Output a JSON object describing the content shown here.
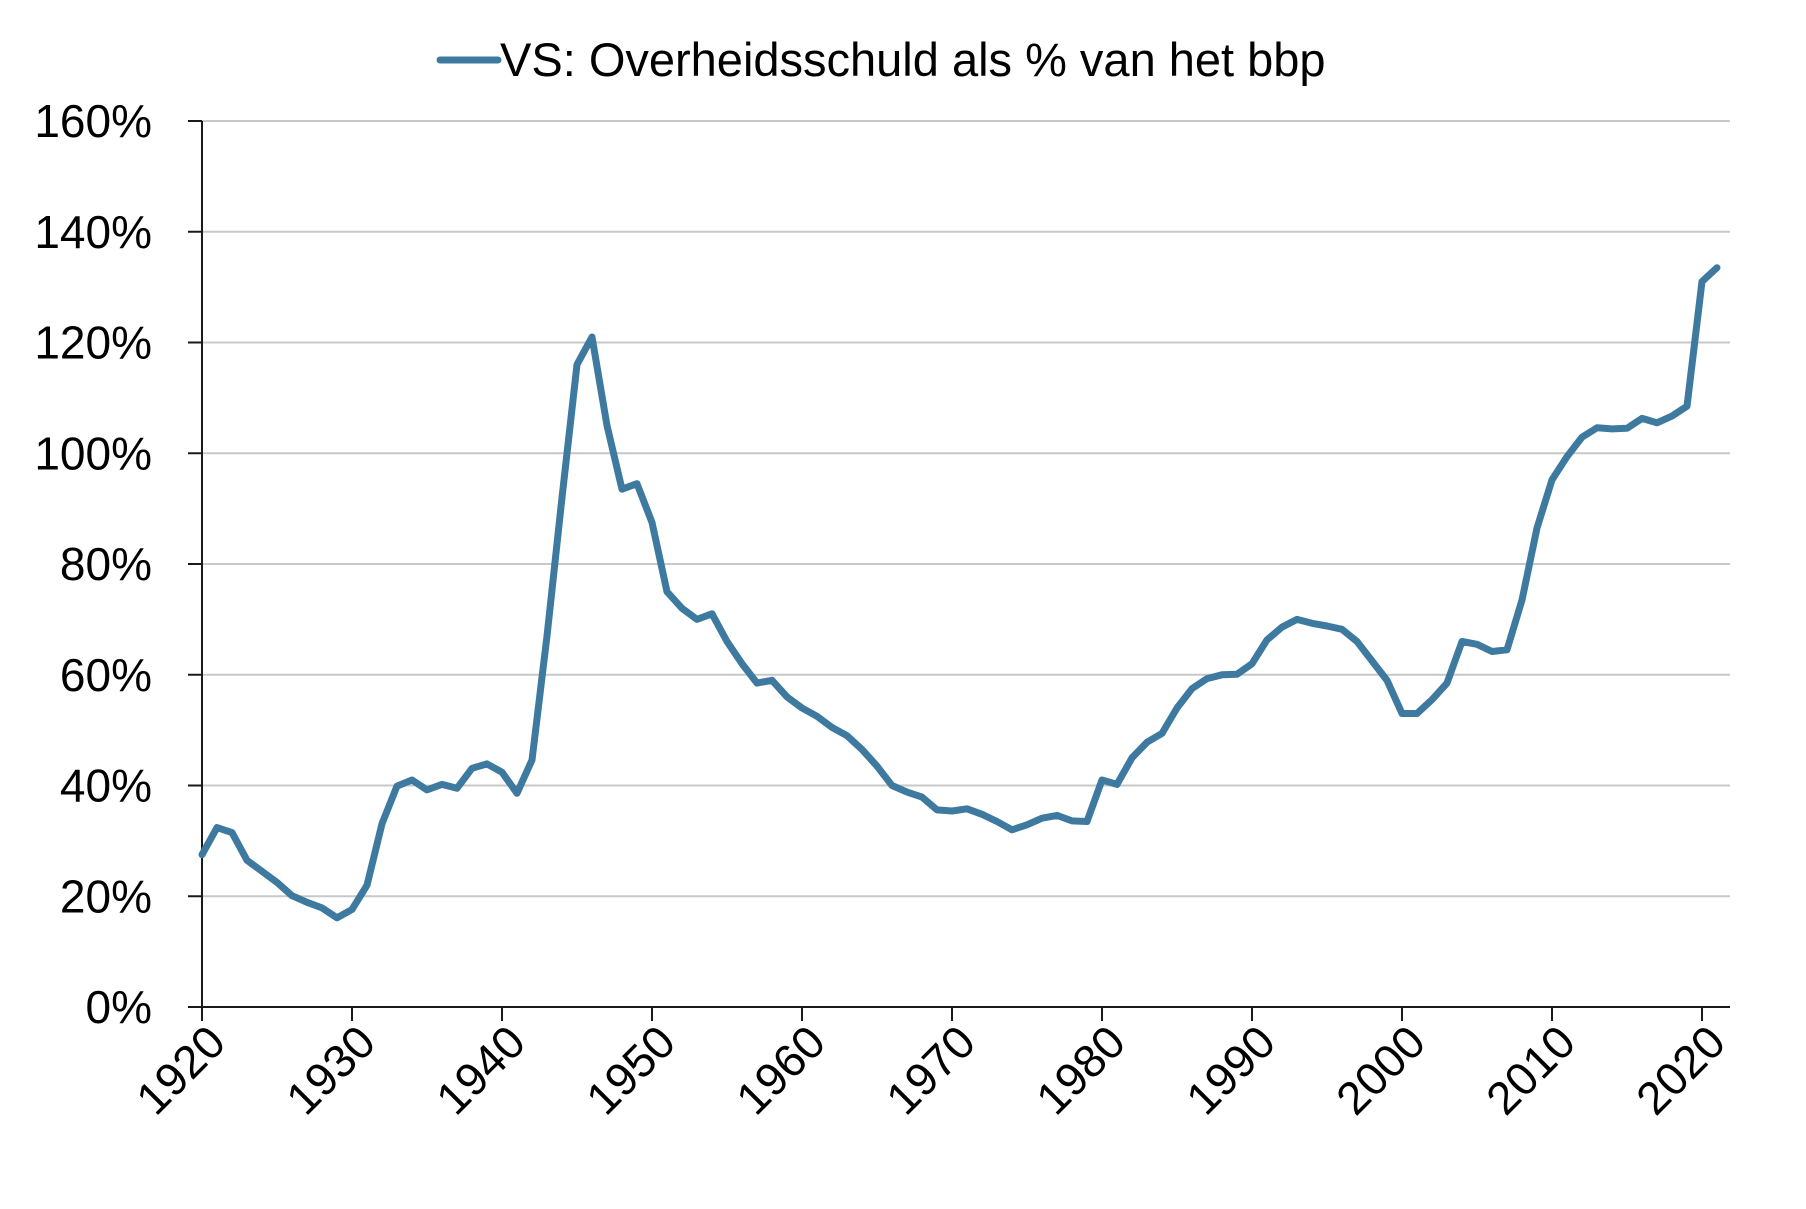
{
  "chart_data": {
    "type": "line",
    "title": "",
    "xlabel": "",
    "ylabel": "",
    "xlim": [
      1920,
      2022
    ],
    "ylim": [
      0,
      160
    ],
    "x_ticks": [
      1920,
      1930,
      1940,
      1950,
      1960,
      1970,
      1980,
      1990,
      2000,
      2010,
      2020
    ],
    "x_tick_labels": [
      "1920",
      "1930",
      "1940",
      "1950",
      "1960",
      "1970",
      "1980",
      "1990",
      "2000",
      "2010",
      "2020"
    ],
    "y_ticks": [
      0,
      20,
      40,
      60,
      80,
      100,
      120,
      140,
      160
    ],
    "y_tick_labels": [
      "0%",
      "20%",
      "40%",
      "60%",
      "80%",
      "100%",
      "120%",
      "140%",
      "160%"
    ],
    "grid": "horizontal",
    "legend_position": "top-center",
    "series": [
      {
        "name": "VS: Overheidsschuld als % van het bbp",
        "color": "#3e7aa0",
        "x": [
          1920,
          1921,
          1922,
          1923,
          1924,
          1925,
          1926,
          1927,
          1928,
          1929,
          1930,
          1931,
          1932,
          1933,
          1934,
          1935,
          1936,
          1937,
          1938,
          1939,
          1940,
          1941,
          1942,
          1943,
          1944,
          1945,
          1946,
          1947,
          1948,
          1949,
          1950,
          1951,
          1952,
          1953,
          1954,
          1955,
          1956,
          1957,
          1958,
          1959,
          1960,
          1961,
          1962,
          1963,
          1964,
          1965,
          1966,
          1967,
          1968,
          1969,
          1970,
          1971,
          1972,
          1973,
          1974,
          1975,
          1976,
          1977,
          1978,
          1979,
          1980,
          1981,
          1982,
          1983,
          1984,
          1985,
          1986,
          1987,
          1988,
          1989,
          1990,
          1991,
          1992,
          1993,
          1994,
          1995,
          1996,
          1997,
          1998,
          1999,
          2000,
          2001,
          2002,
          2003,
          2004,
          2005,
          2006,
          2007,
          2008,
          2009,
          2010,
          2011,
          2012,
          2013,
          2014,
          2015,
          2016,
          2017,
          2018,
          2019,
          2020,
          2021
        ],
        "values": [
          27.5,
          32.4,
          31.5,
          26.5,
          24.5,
          22.5,
          20.1,
          18.9,
          17.9,
          16.1,
          17.6,
          22.0,
          33.1,
          39.9,
          41.0,
          39.2,
          40.2,
          39.5,
          43.1,
          43.9,
          42.4,
          38.6,
          44.6,
          67.0,
          92.0,
          116.0,
          121.0,
          105.0,
          93.5,
          94.5,
          87.5,
          75.0,
          72.0,
          70.0,
          71.0,
          66.0,
          62.0,
          58.5,
          59.0,
          56.0,
          54.0,
          52.5,
          50.5,
          49.0,
          46.5,
          43.5,
          40.0,
          38.8,
          37.9,
          35.6,
          35.4,
          35.8,
          34.8,
          33.5,
          32.0,
          32.9,
          34.1,
          34.6,
          33.6,
          33.5,
          41.0,
          40.2,
          45.0,
          47.8,
          49.4,
          54.0,
          57.5,
          59.3,
          60.0,
          60.1,
          62.0,
          66.3,
          68.6,
          70.0,
          69.3,
          68.8,
          68.2,
          66.0,
          62.5,
          59.0,
          53.0,
          53.0,
          55.5,
          58.5,
          66.0,
          65.5,
          64.2,
          64.5,
          73.5,
          86.5,
          95.2,
          99.4,
          102.9,
          104.6,
          104.4,
          104.5,
          106.3,
          105.5,
          106.7,
          108.5,
          131.0,
          133.5
        ]
      }
    ]
  }
}
